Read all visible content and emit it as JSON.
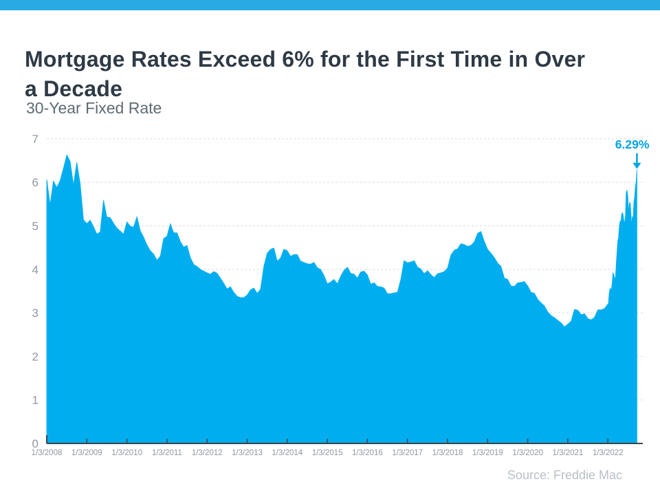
{
  "page": {
    "title": "Mortgage Rates Exceed 6% for the First Time in Over a Decade"
  },
  "colors": {
    "top_bar": "#29ABE2",
    "area_fill": "#00AEEF",
    "annotation": "#00A3E3",
    "axis": "#3F4348",
    "grid": "#D8DCE0",
    "tick_label": "#8D97A1",
    "title_text": "#2E3A45",
    "subtitle_text": "#5E6A74",
    "source_text": "#B9C0CA"
  },
  "chart_data": {
    "type": "area",
    "title": "30-Year Fixed Rate",
    "unit": "%",
    "xlabel": "",
    "ylabel": "",
    "ylim": [
      0,
      7
    ],
    "y_ticks": [
      0,
      1,
      2,
      3,
      4,
      5,
      6,
      7
    ],
    "x_tick_labels": [
      "1/3/2008",
      "1/3/2009",
      "1/3/2010",
      "1/3/2011",
      "1/3/2012",
      "1/3/2013",
      "1/3/2014",
      "1/3/2015",
      "1/3/2016",
      "1/3/2017",
      "1/3/2018",
      "1/3/2019",
      "1/3/2020",
      "1/3/2021",
      "1/3/2022"
    ],
    "grid": "horizontal-dashed",
    "legend": "none",
    "annotation": {
      "text": "6.29%",
      "value": 6.29,
      "date": "9/22/2022"
    },
    "source": "Source: Freddie Mac",
    "series": [
      {
        "name": "30-Year Fixed Rate",
        "cadence": "monthly 1/2008-12/2021, then weekly 2022",
        "monthly_start": "1/2008",
        "monthly_values": [
          6.07,
          5.48,
          6.03,
          5.88,
          6.04,
          6.32,
          6.63,
          6.48,
          5.94,
          6.46,
          5.97,
          5.14,
          5.05,
          5.13,
          4.98,
          4.81,
          4.86,
          5.59,
          5.2,
          5.19,
          5.06,
          4.95,
          4.88,
          4.81,
          5.09,
          4.99,
          4.97,
          5.21,
          4.89,
          4.74,
          4.56,
          4.43,
          4.35,
          4.21,
          4.3,
          4.71,
          4.76,
          5.05,
          4.84,
          4.84,
          4.64,
          4.51,
          4.55,
          4.27,
          4.11,
          4.07,
          4.0,
          3.96,
          3.92,
          3.89,
          3.95,
          3.91,
          3.8,
          3.68,
          3.55,
          3.6,
          3.47,
          3.38,
          3.35,
          3.35,
          3.41,
          3.53,
          3.57,
          3.45,
          3.54,
          4.07,
          4.37,
          4.46,
          4.49,
          4.19,
          4.26,
          4.46,
          4.43,
          4.3,
          4.34,
          4.34,
          4.19,
          4.16,
          4.13,
          4.12,
          4.16,
          4.04,
          4.0,
          3.86,
          3.67,
          3.71,
          3.77,
          3.67,
          3.84,
          3.98,
          4.05,
          3.91,
          3.89,
          3.8,
          3.94,
          3.96,
          3.87,
          3.66,
          3.69,
          3.61,
          3.6,
          3.57,
          3.44,
          3.44,
          3.46,
          3.47,
          3.77,
          4.2,
          4.15,
          4.17,
          4.2,
          4.05,
          4.01,
          3.9,
          3.97,
          3.88,
          3.81,
          3.9,
          3.92,
          3.95,
          4.03,
          4.33,
          4.44,
          4.47,
          4.59,
          4.57,
          4.53,
          4.55,
          4.63,
          4.83,
          4.87,
          4.64,
          4.46,
          4.37,
          4.27,
          4.14,
          4.07,
          3.8,
          3.77,
          3.62,
          3.61,
          3.69,
          3.7,
          3.72,
          3.62,
          3.47,
          3.45,
          3.31,
          3.23,
          3.16,
          3.02,
          2.94,
          2.89,
          2.83,
          2.77,
          2.68,
          2.74,
          2.81,
          3.08,
          3.06,
          2.96,
          2.98,
          2.87,
          2.84,
          2.9,
          3.07,
          3.07,
          3.1
        ],
        "weekly_2022_points": [
          [
            "1/6/2022",
            3.22
          ],
          [
            "1/13/2022",
            3.45
          ],
          [
            "1/20/2022",
            3.56
          ],
          [
            "1/27/2022",
            3.55
          ],
          [
            "2/3/2022",
            3.55
          ],
          [
            "2/10/2022",
            3.69
          ],
          [
            "2/17/2022",
            3.92
          ],
          [
            "2/24/2022",
            3.89
          ],
          [
            "3/3/2022",
            3.76
          ],
          [
            "3/10/2022",
            3.85
          ],
          [
            "3/17/2022",
            4.16
          ],
          [
            "3/24/2022",
            4.42
          ],
          [
            "3/31/2022",
            4.67
          ],
          [
            "4/7/2022",
            4.72
          ],
          [
            "4/14/2022",
            5.0
          ],
          [
            "4/21/2022",
            5.11
          ],
          [
            "4/28/2022",
            5.1
          ],
          [
            "5/5/2022",
            5.27
          ],
          [
            "5/12/2022",
            5.3
          ],
          [
            "5/19/2022",
            5.25
          ],
          [
            "5/26/2022",
            5.1
          ],
          [
            "6/2/2022",
            5.09
          ],
          [
            "6/9/2022",
            5.23
          ],
          [
            "6/16/2022",
            5.78
          ],
          [
            "6/23/2022",
            5.81
          ],
          [
            "6/30/2022",
            5.7
          ],
          [
            "7/7/2022",
            5.3
          ],
          [
            "7/14/2022",
            5.51
          ],
          [
            "7/21/2022",
            5.54
          ],
          [
            "7/28/2022",
            5.3
          ],
          [
            "8/4/2022",
            4.99
          ],
          [
            "8/11/2022",
            5.22
          ],
          [
            "8/18/2022",
            5.13
          ],
          [
            "8/25/2022",
            5.55
          ],
          [
            "9/1/2022",
            5.66
          ],
          [
            "9/8/2022",
            5.89
          ],
          [
            "9/15/2022",
            6.02
          ],
          [
            "9/22/2022",
            6.29
          ]
        ]
      }
    ]
  }
}
